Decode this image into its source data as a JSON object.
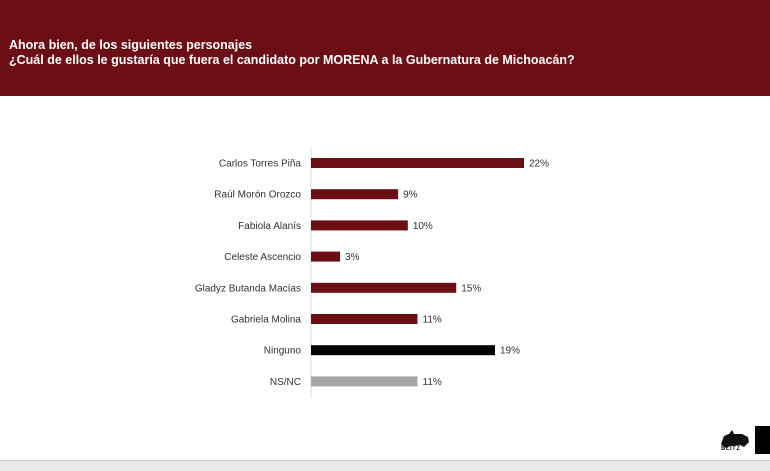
{
  "header": {
    "line1": "Ahora bien, de los siguientes personajes",
    "line2": "¿Cuál de ellos le gustaría que fuera el candidato por MORENA a la Gubernatura de Michoacán?"
  },
  "chart_data": {
    "type": "bar",
    "orientation": "horizontal",
    "categories": [
      "Carlos Torres Piña",
      "Raúl Morón Orozco",
      "Fabiola Alanís",
      "Celeste Ascencio",
      "Gladyz Butanda Macías",
      "Gabriela Molina",
      "Ninguno",
      "NS/NC"
    ],
    "values": [
      22,
      9,
      10,
      3,
      15,
      11,
      19,
      11
    ],
    "value_labels": [
      "22%",
      "9%",
      "10%",
      "3%",
      "15%",
      "11%",
      "19%",
      "11%"
    ],
    "colors": [
      "#6b0f15",
      "#6b0f15",
      "#6b0f15",
      "#6b0f15",
      "#6b0f15",
      "#6b0f15",
      "#000000",
      "#a6a6a6"
    ],
    "unit": "%",
    "xlim": [
      0,
      22
    ],
    "grid": false,
    "legend": "none"
  },
  "branding": {
    "logo_text": "BLITZ",
    "accent_color": "#6b0f15"
  }
}
